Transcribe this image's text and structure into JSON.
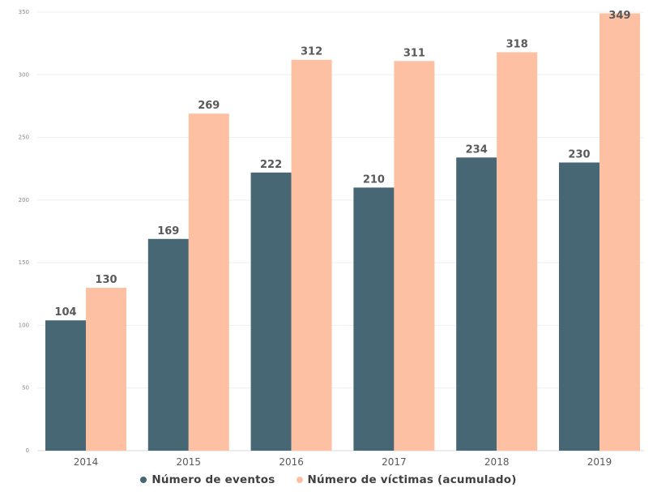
{
  "chart_data": {
    "type": "bar",
    "categories": [
      "2014",
      "2015",
      "2016",
      "2017",
      "2018",
      "2019"
    ],
    "series": [
      {
        "name": "Número de eventos",
        "values": [
          104,
          169,
          222,
          210,
          234,
          230
        ],
        "color": "#476774"
      },
      {
        "name": "Número de víctimas (acumulado)",
        "values": [
          130,
          269,
          312,
          311,
          318,
          349
        ],
        "color": "#FDC0A3"
      }
    ],
    "ylim": [
      0,
      350
    ],
    "yticks": [
      0,
      50,
      100,
      150,
      200,
      250,
      300,
      350
    ],
    "grid": true,
    "legend_position": "bottom-center",
    "title": "",
    "xlabel": "",
    "ylabel": ""
  }
}
